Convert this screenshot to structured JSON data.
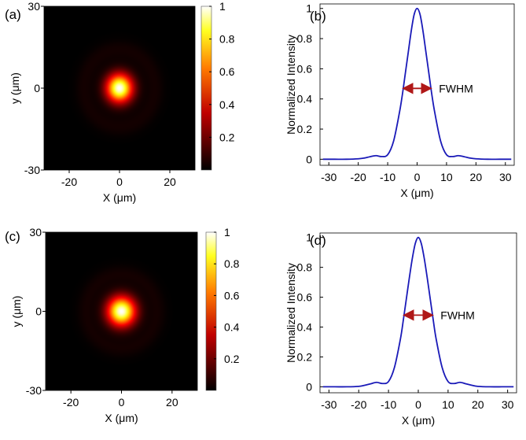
{
  "panels": [
    {
      "id": "a",
      "label": "(a)",
      "chart_data": {
        "type": "heatmap",
        "description_label": "",
        "xlabel": "X (μm)",
        "ylabel": "y (μm)",
        "xlim": [
          -30,
          30
        ],
        "ylim": [
          -30,
          30
        ],
        "xticks": [
          -20,
          0,
          20
        ],
        "yticks": [
          30,
          0,
          -30
        ],
        "colorbar": {
          "ticks": [
            1,
            0.8,
            0.6,
            0.4,
            0.2
          ],
          "range": [
            0,
            1
          ],
          "colormap": "hot"
        },
        "spot": {
          "center": [
            0,
            0
          ],
          "fwhm_um": 8.4,
          "ring_radius_um": 14,
          "ring_intensity": 0.03
        }
      }
    },
    {
      "id": "b",
      "label": "(b)",
      "chart_data": {
        "type": "line",
        "xlabel": "X (μm)",
        "ylabel": "Normalized Intensity",
        "xlim": [
          -33,
          33
        ],
        "ylim": [
          -0.04,
          1.03
        ],
        "xticks": [
          -30,
          -20,
          -10,
          0,
          10,
          20,
          30
        ],
        "yticks": [
          0,
          0.2,
          0.4,
          0.6,
          0.8,
          1
        ],
        "series": [
          {
            "color": "#1a1ab8",
            "x": [
              -32,
              -28,
              -24,
              -20,
              -18,
              -16,
              -14,
              -12,
              -10,
              -8,
              -6,
              -5,
              -4,
              -3,
              -2,
              -1,
              0,
              1,
              2,
              3,
              4,
              5,
              6,
              8,
              10,
              12,
              14,
              16,
              18,
              20,
              24,
              28,
              32
            ],
            "y": [
              0,
              0,
              0,
              0.003,
              0.008,
              0.017,
              0.024,
              0.018,
              0.03,
              0.12,
              0.31,
              0.43,
              0.57,
              0.71,
              0.85,
              0.96,
              1.0,
              0.96,
              0.85,
              0.71,
              0.57,
              0.43,
              0.31,
              0.12,
              0.03,
              0.018,
              0.024,
              0.017,
              0.008,
              0.003,
              0,
              0,
              0
            ]
          }
        ],
        "annotation": {
          "text": "FWHM",
          "x_from": -4.2,
          "x_to": 4.2,
          "y": 0.47,
          "color": "#b01818"
        }
      }
    },
    {
      "id": "c",
      "label": "(c)",
      "chart_data": {
        "type": "heatmap",
        "xlabel": "X (μm)",
        "ylabel": "y (μm)",
        "xlim": [
          -30,
          30
        ],
        "ylim": [
          -30,
          30
        ],
        "xticks": [
          -20,
          0,
          20
        ],
        "yticks": [
          30,
          0,
          -30
        ],
        "colorbar": {
          "ticks": [
            1,
            0.8,
            0.6,
            0.4,
            0.2
          ],
          "range": [
            0,
            1
          ],
          "colormap": "hot"
        },
        "spot": {
          "center": [
            0,
            0
          ],
          "fwhm_um": 9.0,
          "ring_radius_um": 14,
          "ring_intensity": 0.03
        }
      }
    },
    {
      "id": "d",
      "label": "(d)",
      "chart_data": {
        "type": "line",
        "xlabel": "X (μm)",
        "ylabel": "Normalized Intensity",
        "xlim": [
          -33,
          33
        ],
        "ylim": [
          -0.04,
          1.03
        ],
        "xticks": [
          -30,
          -20,
          -10,
          0,
          10,
          20,
          30
        ],
        "yticks": [
          0,
          0.2,
          0.4,
          0.6,
          0.8,
          1
        ],
        "series": [
          {
            "color": "#1a1ab8",
            "x": [
              -32,
              -28,
              -24,
              -20,
              -18,
              -16,
              -14,
              -12,
              -10,
              -8,
              -6,
              -5,
              -4,
              -3,
              -2,
              -1,
              0,
              1,
              2,
              3,
              4,
              5,
              6,
              8,
              10,
              12,
              14,
              16,
              18,
              20,
              24,
              28,
              32
            ],
            "y": [
              0,
              0,
              0,
              0.003,
              0.01,
              0.02,
              0.03,
              0.022,
              0.035,
              0.13,
              0.32,
              0.45,
              0.59,
              0.73,
              0.86,
              0.96,
              1.0,
              0.96,
              0.86,
              0.73,
              0.59,
              0.45,
              0.32,
              0.13,
              0.035,
              0.022,
              0.03,
              0.02,
              0.01,
              0.003,
              0,
              0,
              0
            ]
          }
        ],
        "annotation": {
          "text": "FWHM",
          "x_from": -4.3,
          "x_to": 4.3,
          "y": 0.48,
          "color": "#b01818"
        }
      }
    }
  ]
}
